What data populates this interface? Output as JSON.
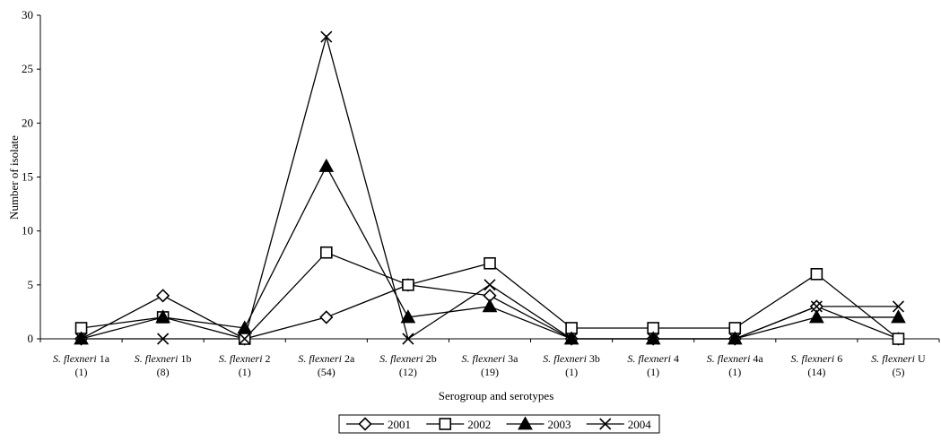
{
  "chart_data": {
    "type": "line",
    "title": "",
    "xlabel": "Serogroup and serotypes",
    "ylabel": "Number of isolate",
    "ylim": [
      0,
      30
    ],
    "yticks": [
      0,
      5,
      10,
      15,
      20,
      25,
      30
    ],
    "grid": false,
    "legend_position": "bottom",
    "categories": [
      {
        "prefix": "S. flexneri",
        "serotype": "1a",
        "count": "(1)"
      },
      {
        "prefix": "S. flexneri",
        "serotype": "1b",
        "count": "(8)"
      },
      {
        "prefix": "S. flexneri",
        "serotype": "2",
        "count": "(1)"
      },
      {
        "prefix": "S. flexneri",
        "serotype": "2a",
        "count": "(54)"
      },
      {
        "prefix": "S. flexneri",
        "serotype": "2b",
        "count": "(12)"
      },
      {
        "prefix": "S. flexneri",
        "serotype": "3a",
        "count": "(19)"
      },
      {
        "prefix": "S. flexneri",
        "serotype": "3b",
        "count": "(1)"
      },
      {
        "prefix": "S. flexneri",
        "serotype": "4",
        "count": "(1)"
      },
      {
        "prefix": "S. flexneri",
        "serotype": "4a",
        "count": "(1)"
      },
      {
        "prefix": "S. flexneri",
        "serotype": "6",
        "count": "(14)"
      },
      {
        "prefix": "S. flexneri",
        "serotype": "U",
        "count": "(5)"
      }
    ],
    "series": [
      {
        "name": "2001",
        "marker": "diamond-open",
        "values": [
          0,
          4,
          0,
          2,
          5,
          4,
          0,
          0,
          0,
          3,
          0
        ]
      },
      {
        "name": "2002",
        "marker": "square-open",
        "values": [
          1,
          2,
          0,
          8,
          5,
          7,
          1,
          1,
          1,
          6,
          0
        ]
      },
      {
        "name": "2003",
        "marker": "triangle-filled",
        "values": [
          0,
          2,
          1,
          16,
          2,
          3,
          0,
          0,
          0,
          2,
          2
        ]
      },
      {
        "name": "2004",
        "marker": "cross",
        "values": [
          0,
          0,
          0,
          28,
          0,
          5,
          0,
          0,
          0,
          3,
          3
        ]
      }
    ],
    "colors": {
      "line": "#000000",
      "background": "#ffffff"
    }
  }
}
